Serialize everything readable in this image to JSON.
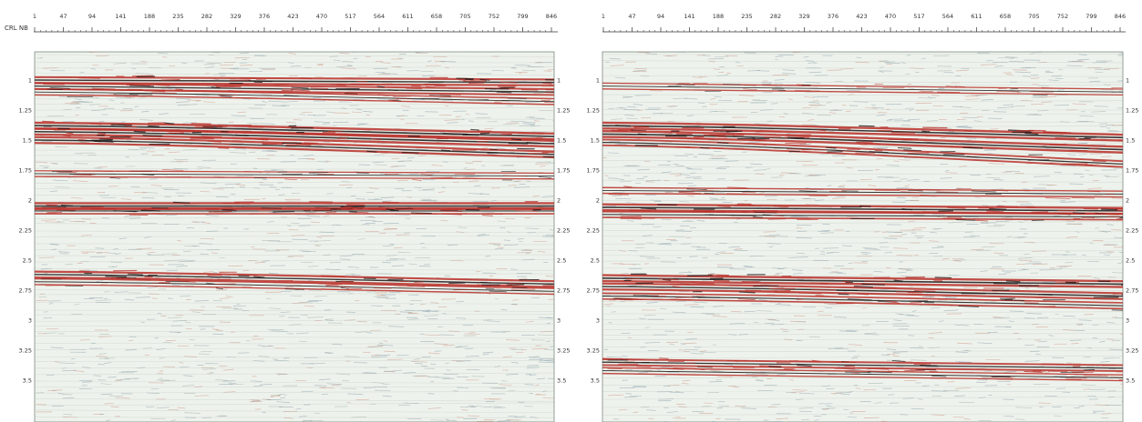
{
  "axis_label": "CRL NB",
  "x_ticks": [
    "1",
    "47",
    "94",
    "141",
    "188",
    "235",
    "282",
    "329",
    "376",
    "423",
    "470",
    "517",
    "564",
    "611",
    "658",
    "705",
    "752",
    "799",
    "846"
  ],
  "y_ticks": [
    "1",
    "1.25",
    "1.5",
    "1.75",
    "2",
    "2.25",
    "2.5",
    "2.75",
    "3",
    "3.25",
    "3.5"
  ],
  "panels": [
    {
      "id": "left",
      "show_axis_label": true,
      "reflectors": [
        {
          "t0": 1.0,
          "t1": 1.02,
          "strength": 0.9
        },
        {
          "t0": 1.05,
          "t1": 1.1,
          "strength": 0.8
        },
        {
          "t0": 1.1,
          "t1": 1.18,
          "strength": 0.6
        },
        {
          "t0": 1.38,
          "t1": 1.47,
          "strength": 1.0
        },
        {
          "t0": 1.43,
          "t1": 1.53,
          "strength": 1.0
        },
        {
          "t0": 1.5,
          "t1": 1.62,
          "strength": 0.9
        },
        {
          "t0": 1.78,
          "t1": 1.8,
          "strength": 0.55
        },
        {
          "t0": 2.05,
          "t1": 2.05,
          "strength": 1.0
        },
        {
          "t0": 2.09,
          "t1": 2.09,
          "strength": 0.7
        },
        {
          "t0": 2.62,
          "t1": 2.7,
          "strength": 0.9
        },
        {
          "t0": 2.68,
          "t1": 2.76,
          "strength": 0.6
        }
      ]
    },
    {
      "id": "right",
      "show_axis_label": false,
      "reflectors": [
        {
          "t0": 1.05,
          "t1": 1.1,
          "strength": 0.55
        },
        {
          "t0": 1.38,
          "t1": 1.48,
          "strength": 1.0
        },
        {
          "t0": 1.45,
          "t1": 1.58,
          "strength": 1.0
        },
        {
          "t0": 1.52,
          "t1": 1.7,
          "strength": 0.8
        },
        {
          "t0": 1.92,
          "t1": 1.95,
          "strength": 0.6
        },
        {
          "t0": 2.06,
          "t1": 2.09,
          "strength": 1.0
        },
        {
          "t0": 2.12,
          "t1": 2.14,
          "strength": 0.7
        },
        {
          "t0": 2.65,
          "t1": 2.7,
          "strength": 1.0
        },
        {
          "t0": 2.72,
          "t1": 2.8,
          "strength": 0.9
        },
        {
          "t0": 2.8,
          "t1": 2.88,
          "strength": 0.7
        },
        {
          "t0": 3.35,
          "t1": 3.4,
          "strength": 0.8
        },
        {
          "t0": 3.42,
          "t1": 3.48,
          "strength": 0.6
        }
      ]
    }
  ],
  "colors": {
    "background": "#eef2ec",
    "red": "#b8302a",
    "black": "#1a1212",
    "blue_grey": "#7f98a6",
    "axis": "#333333"
  }
}
